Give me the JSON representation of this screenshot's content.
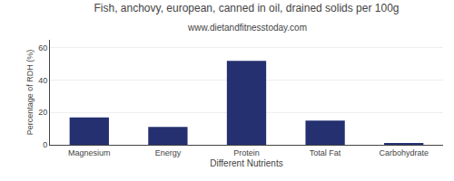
{
  "chart_data": {
    "type": "bar",
    "title": "Fish, anchovy, european, canned in oil, drained solids per 100g",
    "subtitle": "www.dietandfitnesstoday.com",
    "xlabel": "Different Nutrients",
    "ylabel": "Percentage of RDH (%)",
    "categories": [
      "Magnesium",
      "Energy",
      "Protein",
      "Total Fat",
      "Carbohydrate"
    ],
    "values": [
      17,
      11,
      52,
      15,
      1
    ],
    "color": "#253070",
    "ylim": [
      0,
      65
    ],
    "yticks": [
      0,
      20,
      40,
      60
    ],
    "grid": true
  }
}
